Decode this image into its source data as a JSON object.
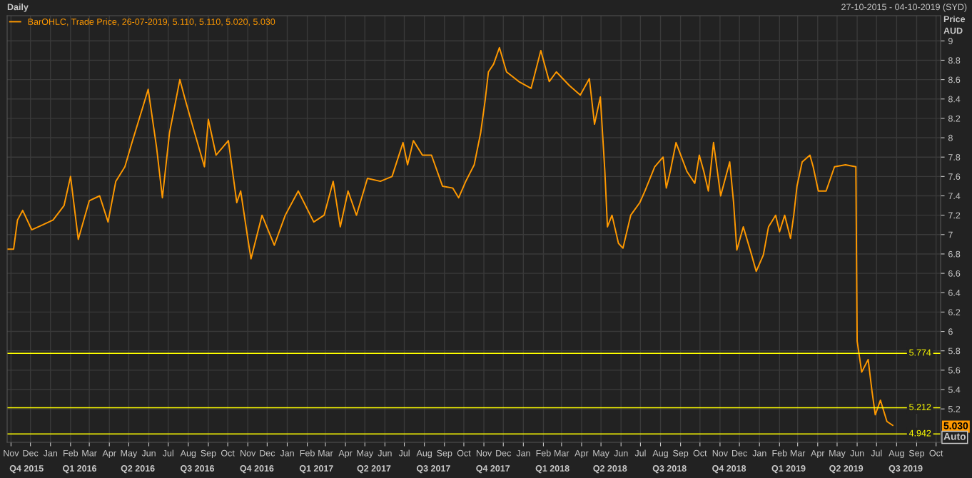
{
  "chart_data": {
    "type": "line",
    "title": "Daily",
    "subtitle": "27-10-2015 - 04-10-2019 (SYD)",
    "ylabel": "Price\nAUD",
    "x": [
      "2015-10-27",
      "2015-11-05",
      "2015-11-11",
      "2015-11-19",
      "2015-12-03",
      "2015-12-20",
      "2016-01-05",
      "2016-01-22",
      "2016-02-01",
      "2016-02-13",
      "2016-03-01",
      "2016-03-17",
      "2016-03-30",
      "2016-04-11",
      "2016-04-25",
      "2016-05-06",
      "2016-05-22",
      "2016-05-31",
      "2016-06-13",
      "2016-06-22",
      "2016-07-03",
      "2016-07-19",
      "2016-07-27",
      "2016-08-10",
      "2016-08-26",
      "2016-09-01",
      "2016-09-13",
      "2016-10-02",
      "2016-10-15",
      "2016-10-21",
      "2016-11-01",
      "2016-11-06",
      "2016-11-23",
      "2016-12-12",
      "2016-12-29",
      "2017-01-18",
      "2017-02-11",
      "2017-02-27",
      "2017-03-13",
      "2017-03-24",
      "2017-04-05",
      "2017-04-18",
      "2017-05-05",
      "2017-05-25",
      "2017-06-12",
      "2017-06-29",
      "2017-07-06",
      "2017-07-15",
      "2017-07-29",
      "2017-08-12",
      "2017-08-29",
      "2017-09-14",
      "2017-09-23",
      "2017-10-04",
      "2017-10-17",
      "2017-10-27",
      "2017-11-03",
      "2017-11-08",
      "2017-11-16",
      "2017-11-25",
      "2017-12-06",
      "2017-12-25",
      "2018-01-13",
      "2018-01-28",
      "2018-02-10",
      "2018-02-21",
      "2018-03-13",
      "2018-03-30",
      "2018-04-13",
      "2018-04-21",
      "2018-04-30",
      "2018-05-07",
      "2018-05-11",
      "2018-05-18",
      "2018-05-28",
      "2018-06-04",
      "2018-06-16",
      "2018-06-30",
      "2018-07-08",
      "2018-07-23",
      "2018-08-05",
      "2018-08-10",
      "2018-08-16",
      "2018-08-25",
      "2018-09-11",
      "2018-09-23",
      "2018-09-30",
      "2018-10-07",
      "2018-10-14",
      "2018-10-22",
      "2018-11-02",
      "2018-11-16",
      "2018-11-22",
      "2018-11-27",
      "2018-12-07",
      "2018-12-19",
      "2018-12-27",
      "2019-01-07",
      "2019-01-15",
      "2019-01-26",
      "2019-02-01",
      "2019-02-09",
      "2019-02-18",
      "2019-02-23",
      "2019-02-28",
      "2019-03-08",
      "2019-03-20",
      "2019-03-25",
      "2019-04-02",
      "2019-04-14",
      "2019-04-27",
      "2019-05-14",
      "2019-05-30",
      "2019-06-01",
      "2019-06-08",
      "2019-06-18",
      "2019-06-24",
      "2019-06-29",
      "2019-07-07",
      "2019-07-17",
      "2019-07-26"
    ],
    "series": [
      {
        "name": "BarOHLC, Trade Price, 26-07-2019, 5.110, 5.110, 5.020, 5.030",
        "color": "#ff9900",
        "values": [
          6.85,
          6.85,
          7.15,
          7.25,
          7.05,
          7.1,
          7.15,
          7.3,
          7.6,
          6.95,
          7.35,
          7.4,
          7.13,
          7.55,
          7.7,
          7.95,
          8.3,
          8.5,
          7.9,
          7.38,
          8.05,
          8.6,
          8.4,
          8.07,
          7.7,
          8.19,
          7.82,
          7.97,
          7.33,
          7.45,
          6.96,
          6.75,
          7.2,
          6.89,
          7.2,
          7.45,
          7.13,
          7.2,
          7.55,
          7.08,
          7.45,
          7.2,
          7.58,
          7.55,
          7.6,
          7.95,
          7.72,
          7.97,
          7.82,
          7.82,
          7.5,
          7.48,
          7.38,
          7.55,
          7.72,
          8.05,
          8.39,
          8.68,
          8.76,
          8.93,
          8.68,
          8.58,
          8.51,
          8.9,
          8.58,
          8.68,
          8.54,
          8.44,
          8.61,
          8.14,
          8.42,
          7.65,
          7.08,
          7.2,
          6.91,
          6.86,
          7.2,
          7.33,
          7.45,
          7.7,
          7.8,
          7.48,
          7.65,
          7.95,
          7.65,
          7.53,
          7.82,
          7.65,
          7.45,
          7.95,
          7.4,
          7.75,
          7.33,
          6.84,
          7.08,
          6.81,
          6.62,
          6.79,
          7.08,
          7.2,
          7.03,
          7.2,
          6.96,
          7.2,
          7.5,
          7.75,
          7.82,
          7.7,
          7.45,
          7.45,
          7.7,
          7.72,
          7.7,
          5.9,
          5.58,
          5.71,
          5.38,
          5.14,
          5.29,
          5.07,
          5.03
        ]
      }
    ],
    "xlim": [
      "2015-10-26",
      "2019-10-08"
    ],
    "xticks": [
      {
        "value": "2015-11-01",
        "label": "Nov"
      },
      {
        "value": "2015-12-01",
        "label": "Dec"
      },
      {
        "value": "2016-01-01",
        "label": "Jan"
      },
      {
        "value": "2016-02-01",
        "label": "Feb"
      },
      {
        "value": "2016-03-01",
        "label": "Mar"
      },
      {
        "value": "2016-04-01",
        "label": "Apr"
      },
      {
        "value": "2016-05-01",
        "label": "May"
      },
      {
        "value": "2016-06-01",
        "label": "Jun"
      },
      {
        "value": "2016-07-01",
        "label": "Jul"
      },
      {
        "value": "2016-08-01",
        "label": "Aug"
      },
      {
        "value": "2016-09-01",
        "label": "Sep"
      },
      {
        "value": "2016-10-01",
        "label": "Oct"
      },
      {
        "value": "2016-11-01",
        "label": "Nov"
      },
      {
        "value": "2016-12-01",
        "label": "Dec"
      },
      {
        "value": "2017-01-01",
        "label": "Jan"
      },
      {
        "value": "2017-02-01",
        "label": "Feb"
      },
      {
        "value": "2017-03-01",
        "label": "Mar"
      },
      {
        "value": "2017-04-01",
        "label": "Apr"
      },
      {
        "value": "2017-05-01",
        "label": "May"
      },
      {
        "value": "2017-06-01",
        "label": "Jun"
      },
      {
        "value": "2017-07-01",
        "label": "Jul"
      },
      {
        "value": "2017-08-01",
        "label": "Aug"
      },
      {
        "value": "2017-09-01",
        "label": "Sep"
      },
      {
        "value": "2017-10-01",
        "label": "Oct"
      },
      {
        "value": "2017-11-01",
        "label": "Nov"
      },
      {
        "value": "2017-12-01",
        "label": "Dec"
      },
      {
        "value": "2018-01-01",
        "label": "Jan"
      },
      {
        "value": "2018-02-01",
        "label": "Feb"
      },
      {
        "value": "2018-03-01",
        "label": "Mar"
      },
      {
        "value": "2018-04-01",
        "label": "Apr"
      },
      {
        "value": "2018-05-01",
        "label": "May"
      },
      {
        "value": "2018-06-01",
        "label": "Jun"
      },
      {
        "value": "2018-07-01",
        "label": "Jul"
      },
      {
        "value": "2018-08-01",
        "label": "Aug"
      },
      {
        "value": "2018-09-01",
        "label": "Sep"
      },
      {
        "value": "2018-10-01",
        "label": "Oct"
      },
      {
        "value": "2018-11-01",
        "label": "Nov"
      },
      {
        "value": "2018-12-01",
        "label": "Dec"
      },
      {
        "value": "2019-01-01",
        "label": "Jan"
      },
      {
        "value": "2019-02-01",
        "label": "Feb"
      },
      {
        "value": "2019-03-01",
        "label": "Mar"
      },
      {
        "value": "2019-04-01",
        "label": "Apr"
      },
      {
        "value": "2019-05-01",
        "label": "May"
      },
      {
        "value": "2019-06-01",
        "label": "Jun"
      },
      {
        "value": "2019-07-01",
        "label": "Jul"
      },
      {
        "value": "2019-08-01",
        "label": "Aug"
      },
      {
        "value": "2019-09-01",
        "label": "Sep"
      },
      {
        "value": "2019-10-01",
        "label": "Oct"
      }
    ],
    "x2lim": [
      "2015-10-26",
      "2019-10-08"
    ],
    "x2ticks": [
      {
        "value": "2015-11-25",
        "label": "Q4 2015"
      },
      {
        "value": "2016-02-15",
        "label": "Q1 2016"
      },
      {
        "value": "2016-05-15",
        "label": "Q2 2016"
      },
      {
        "value": "2016-08-15",
        "label": "Q3 2016"
      },
      {
        "value": "2016-11-15",
        "label": "Q4 2016"
      },
      {
        "value": "2017-02-15",
        "label": "Q1 2017"
      },
      {
        "value": "2017-05-15",
        "label": "Q2 2017"
      },
      {
        "value": "2017-08-15",
        "label": "Q3 2017"
      },
      {
        "value": "2017-11-15",
        "label": "Q4 2017"
      },
      {
        "value": "2018-02-15",
        "label": "Q1 2018"
      },
      {
        "value": "2018-05-15",
        "label": "Q2 2018"
      },
      {
        "value": "2018-08-15",
        "label": "Q3 2018"
      },
      {
        "value": "2018-11-15",
        "label": "Q4 2018"
      },
      {
        "value": "2019-02-15",
        "label": "Q1 2019"
      },
      {
        "value": "2019-05-15",
        "label": "Q2 2019"
      },
      {
        "value": "2019-08-15",
        "label": "Q3 2019"
      }
    ],
    "ylim": [
      4.855,
      9.26
    ],
    "yticks": [
      5.2,
      5.4,
      5.6,
      5.8,
      6,
      6.2,
      6.4,
      6.6,
      6.8,
      7,
      7.2,
      7.4,
      7.6,
      7.8,
      8,
      8.2,
      8.4,
      8.6,
      8.8,
      9
    ],
    "ref_lines": [
      {
        "axis": "y",
        "value": 5.774,
        "label": "5.774",
        "color": "#ffff00"
      },
      {
        "axis": "y",
        "value": 5.212,
        "label": "5.212",
        "color": "#ffff00"
      },
      {
        "axis": "y",
        "value": 4.942,
        "label": "4.942",
        "color": "#ffff00"
      }
    ],
    "annotations": [
      "5.030",
      "Auto"
    ],
    "grid": true,
    "legend": "top left",
    "marker": "none",
    "line_style": "solid"
  }
}
